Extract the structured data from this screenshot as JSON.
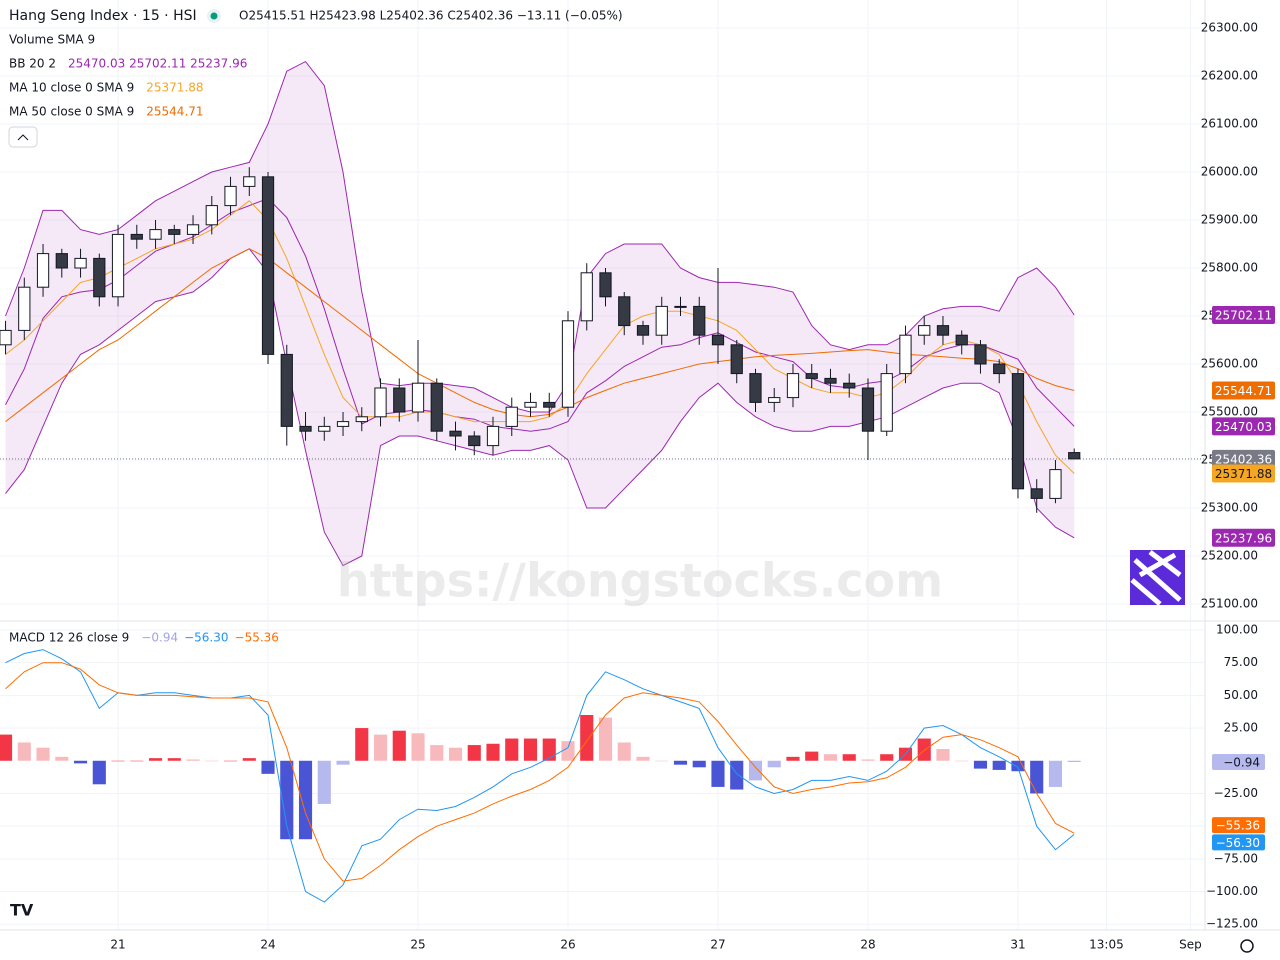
{
  "chart_data": {
    "type": "candlestick",
    "title": "Hang Seng Index · 15 · HSI",
    "ohlc_text": "O25415.51 H25423.98 L25402.36 C25402.36 −13.11 (−0.05%)",
    "watermark": "https://kongstocks.com",
    "xlim": [
      -0.787,
      7.247
    ],
    "xticks": [
      {
        "value": 0,
        "label": "21"
      },
      {
        "value": 1,
        "label": "24"
      },
      {
        "value": 2,
        "label": "25"
      },
      {
        "value": 3,
        "label": "26"
      },
      {
        "value": 4,
        "label": "27"
      },
      {
        "value": 5,
        "label": "28"
      },
      {
        "value": 6,
        "label": "31"
      },
      {
        "value": 6.59,
        "label": "13:05"
      },
      {
        "value": 7.15,
        "label": "Sep"
      }
    ],
    "grid": true,
    "x": [
      -0.75,
      -0.625,
      -0.5,
      -0.375,
      -0.25,
      -0.125,
      0,
      0.125,
      0.25,
      0.375,
      0.5,
      0.625,
      0.75,
      0.875,
      1,
      1.125,
      1.25,
      1.375,
      1.5,
      1.625,
      1.75,
      1.875,
      2,
      2.125,
      2.25,
      2.375,
      2.5,
      2.625,
      2.75,
      2.875,
      3,
      3.125,
      3.25,
      3.375,
      3.5,
      3.625,
      3.75,
      3.875,
      4,
      4.125,
      4.25,
      4.375,
      4.5,
      4.625,
      4.75,
      4.875,
      5,
      5.125,
      5.25,
      5.375,
      5.5,
      5.625,
      5.75,
      5.875,
      6,
      6.125,
      6.25,
      6.375
    ],
    "price": {
      "volume_legend": "Volume SMA 9",
      "ylim": [
        25066.67,
        26358.33
      ],
      "yticks": [
        {
          "value": 25100,
          "label": "25100.00"
        },
        {
          "value": 25200,
          "label": "25200.00"
        },
        {
          "value": 25300,
          "label": "25300.00"
        },
        {
          "value": 25400,
          "label": "25400.00"
        },
        {
          "value": 25500,
          "label": "25500.00"
        },
        {
          "value": 25600,
          "label": "25600.00"
        },
        {
          "value": 25700,
          "label": "25700.00"
        },
        {
          "value": 25800,
          "label": "25800.00"
        },
        {
          "value": 25900,
          "label": "25900.00"
        },
        {
          "value": 26000,
          "label": "26000.00"
        },
        {
          "value": 26100,
          "label": "26100.00"
        },
        {
          "value": 26200,
          "label": "26200.00"
        },
        {
          "value": 26300,
          "label": "26300.00"
        }
      ],
      "up_color": "#ffffff",
      "down_color": "#363a45",
      "border_color": "#131722",
      "open": [
        25640,
        25670,
        25760,
        25830,
        25800,
        25820,
        25740,
        25870,
        25860,
        25880,
        25870,
        25890,
        25930,
        25970,
        25990,
        25620,
        25470,
        25460,
        25470,
        25480,
        25490,
        25550,
        25500,
        25560,
        25460,
        25450,
        25430,
        25470,
        25510,
        25520,
        25510,
        25690,
        25790,
        25740,
        25680,
        25660,
        25720,
        25720,
        25660,
        25640,
        25580,
        25520,
        25530,
        25580,
        25570,
        25560,
        25550,
        25460,
        25580,
        25660,
        25680,
        25660,
        25640,
        25600,
        25580,
        25340,
        25320,
        25415.51
      ],
      "high": [
        25690,
        25780,
        25850,
        25840,
        25840,
        25830,
        25890,
        25890,
        25900,
        25890,
        25910,
        25950,
        25990,
        26010,
        26000,
        25640,
        25500,
        25490,
        25500,
        25510,
        25570,
        25570,
        25650,
        25570,
        25480,
        25460,
        25490,
        25530,
        25540,
        25540,
        25710,
        25810,
        25800,
        25750,
        25690,
        25740,
        25740,
        25740,
        25800,
        25650,
        25590,
        25550,
        25600,
        25600,
        25590,
        25580,
        25570,
        25600,
        25680,
        25700,
        25700,
        25670,
        25650,
        25610,
        25590,
        25360,
        25400,
        25423.98
      ],
      "low": [
        25620,
        25650,
        25740,
        25780,
        25780,
        25720,
        25720,
        25840,
        25840,
        25850,
        25850,
        25870,
        25910,
        25950,
        25600,
        25430,
        25440,
        25440,
        25450,
        25460,
        25470,
        25480,
        25480,
        25440,
        25420,
        25410,
        25410,
        25450,
        25490,
        25490,
        25490,
        25670,
        25720,
        25660,
        25640,
        25640,
        25700,
        25640,
        25600,
        25560,
        25500,
        25500,
        25510,
        25550,
        25540,
        25530,
        25400,
        25450,
        25560,
        25640,
        25640,
        25620,
        25580,
        25560,
        25320,
        25290,
        25310,
        25402.36
      ],
      "close": [
        25670,
        25760,
        25830,
        25800,
        25820,
        25740,
        25870,
        25860,
        25880,
        25870,
        25890,
        25930,
        25970,
        25990,
        25620,
        25470,
        25460,
        25470,
        25480,
        25490,
        25550,
        25500,
        25560,
        25460,
        25450,
        25430,
        25470,
        25510,
        25520,
        25510,
        25690,
        25790,
        25740,
        25680,
        25660,
        25720,
        25720,
        25660,
        25640,
        25580,
        25520,
        25530,
        25580,
        25570,
        25560,
        25550,
        25460,
        25580,
        25660,
        25680,
        25660,
        25640,
        25600,
        25580,
        25340,
        25320,
        25380,
        25402.36
      ],
      "overlays": [
        {
          "name": "BB 20 2",
          "legend_values": "25470.03  25702.11  25237.96",
          "color": "#9c27b0",
          "fill": "rgba(156,39,176,0.1)",
          "basis": [
            25515,
            25590,
            25695,
            25740,
            25750,
            25755,
            25775,
            25805,
            25835,
            25850,
            25865,
            25890,
            25915,
            25930,
            25945,
            25905,
            25825,
            25715,
            25590,
            25475,
            25495,
            25500,
            25505,
            25500,
            25490,
            25485,
            25470,
            25465,
            25460,
            25465,
            25480,
            25540,
            25565,
            25595,
            25615,
            25635,
            25640,
            25655,
            25665,
            25645,
            25625,
            25615,
            25605,
            25570,
            25555,
            25550,
            25560,
            25565,
            25585,
            25615,
            25630,
            25640,
            25640,
            25625,
            25610,
            25550,
            25510,
            25470.03
          ],
          "upper": [
            25700,
            25800,
            25920,
            25920,
            25880,
            25870,
            25880,
            25910,
            25940,
            25960,
            25980,
            26000,
            26010,
            26020,
            26100,
            26210,
            26230,
            26180,
            26000,
            25750,
            25560,
            25555,
            25560,
            25560,
            25555,
            25550,
            25530,
            25510,
            25500,
            25500,
            25560,
            25780,
            25830,
            25850,
            25850,
            25850,
            25800,
            25780,
            25770,
            25770,
            25765,
            25760,
            25750,
            25680,
            25640,
            25630,
            25640,
            25640,
            25660,
            25700,
            25715,
            25720,
            25720,
            25710,
            25780,
            25800,
            25760,
            25702.11
          ],
          "lower": [
            25330,
            25380,
            25470,
            25560,
            25620,
            25640,
            25670,
            25700,
            25730,
            25740,
            25750,
            25780,
            25820,
            25840,
            25790,
            25600,
            25420,
            25250,
            25180,
            25200,
            25430,
            25450,
            25450,
            25440,
            25430,
            25420,
            25410,
            25420,
            25420,
            25430,
            25400,
            25300,
            25300,
            25340,
            25380,
            25420,
            25480,
            25530,
            25560,
            25520,
            25490,
            25470,
            25460,
            25460,
            25470,
            25470,
            25480,
            25490,
            25510,
            25530,
            25550,
            25560,
            25560,
            25540,
            25440,
            25300,
            25260,
            25237.96
          ]
        },
        {
          "name": "MA 10 close 0 SMA 9",
          "legend_values": "25371.88",
          "color": "#f5a623",
          "values": [
            25620,
            25650,
            25690,
            25730,
            25770,
            25780,
            25800,
            25820,
            25840,
            25850,
            25860,
            25880,
            25910,
            25940,
            25900,
            25820,
            25720,
            25620,
            25530,
            25490,
            25490,
            25490,
            25500,
            25500,
            25490,
            25480,
            25480,
            25480,
            25480,
            25490,
            25520,
            25580,
            25630,
            25680,
            25700,
            25710,
            25710,
            25700,
            25690,
            25670,
            25630,
            25590,
            25570,
            25550,
            25540,
            25540,
            25530,
            25540,
            25570,
            25610,
            25640,
            25650,
            25640,
            25620,
            25560,
            25480,
            25410,
            25371.88
          ]
        },
        {
          "name": "MA 50 close 0 SMA 9",
          "legend_values": "25544.71",
          "color": "#ef6c00",
          "values": [
            25480,
            25510,
            25540,
            25570,
            25600,
            25630,
            25650,
            25680,
            25710,
            25740,
            25770,
            25800,
            25820,
            25840,
            25820,
            25790,
            25760,
            25730,
            25700,
            25670,
            25640,
            25610,
            25580,
            25560,
            25540,
            25520,
            25505,
            25495,
            25490,
            25495,
            25510,
            25530,
            25545,
            25560,
            25570,
            25580,
            25590,
            25600,
            25605,
            25610,
            25615,
            25618,
            25620,
            25622,
            25625,
            25628,
            25630,
            25625,
            25620,
            25618,
            25615,
            25612,
            25610,
            25605,
            25590,
            25570,
            25555,
            25544.71
          ]
        }
      ],
      "tags": [
        {
          "value": 25702.11,
          "color": "#9c27b0",
          "text_color": "#ffffff"
        },
        {
          "value": 25544.71,
          "color": "#ef6c00",
          "text_color": "#ffffff"
        },
        {
          "value": 25470.03,
          "color": "#9c27b0",
          "text_color": "#ffffff"
        },
        {
          "value": 25402.36,
          "color": "#787b86",
          "text_color": "#ffffff"
        },
        {
          "value": 25371.88,
          "color": "#f5a623",
          "text_color": "#131722"
        },
        {
          "value": 25237.96,
          "color": "#9c27b0",
          "text_color": "#ffffff"
        }
      ],
      "last_line": 25402.36
    },
    "macd": {
      "name": "MACD 12 26 close 9",
      "legend_values": [
        "−0.94",
        "−56.30",
        "−55.36"
      ],
      "legend_colors": [
        "#9fa4e6",
        "#2196f3",
        "#ff6d00"
      ],
      "ylim": [
        -129.4,
        106.1
      ],
      "yticks": [
        {
          "value": 100,
          "label": "100.00"
        },
        {
          "value": 75,
          "label": "75.00"
        },
        {
          "value": 50,
          "label": "50.00"
        },
        {
          "value": 25,
          "label": "25.00"
        },
        {
          "value": -25,
          "label": "−25.00"
        },
        {
          "value": -50,
          "label": "−50.00"
        },
        {
          "value": -75,
          "label": "−75.00"
        },
        {
          "value": -100,
          "label": "−100.00"
        },
        {
          "value": -125,
          "label": "−125.00"
        }
      ],
      "histogram": {
        "colors": [
          "#f23645",
          "#f8b9bd",
          "#4a55d6",
          "#b5b9ee"
        ],
        "values": [
          20,
          14,
          10,
          3,
          -2,
          -18,
          0,
          0,
          2,
          2,
          1,
          0,
          0,
          2,
          -10,
          -60,
          -60,
          -33,
          -3,
          25,
          20,
          23,
          21,
          12,
          10,
          12,
          13,
          17,
          17,
          17,
          15,
          35,
          33,
          14,
          3,
          0,
          -3,
          -5,
          -20,
          -22,
          -15,
          -5,
          3,
          7,
          5,
          5,
          1,
          5,
          10,
          17,
          9,
          0,
          -6,
          -7,
          -8,
          -25,
          -20,
          -0.94
        ]
      },
      "macd_line": {
        "color": "#2196f3",
        "values": [
          75,
          82,
          85,
          78,
          68,
          40,
          52,
          50,
          52,
          52,
          50,
          48,
          48,
          50,
          35,
          -50,
          -100,
          -108,
          -95,
          -65,
          -60,
          -45,
          -37,
          -38,
          -35,
          -28,
          -20,
          -10,
          -5,
          2,
          10,
          50,
          68,
          62,
          55,
          50,
          45,
          40,
          10,
          -10,
          -20,
          -25,
          -22,
          -15,
          -15,
          -12,
          -15,
          -8,
          5,
          25,
          27,
          20,
          10,
          3,
          -5,
          -50,
          -68,
          -56.3
        ]
      },
      "signal_line": {
        "color": "#ff6d00",
        "values": [
          55,
          68,
          75,
          75,
          70,
          58,
          52,
          50,
          50,
          50,
          49,
          48,
          48,
          48,
          45,
          10,
          -40,
          -75,
          -92,
          -90,
          -80,
          -68,
          -58,
          -50,
          -45,
          -40,
          -33,
          -27,
          -22,
          -15,
          -5,
          15,
          35,
          48,
          52,
          50,
          48,
          45,
          30,
          12,
          -5,
          -20,
          -25,
          -22,
          -20,
          -17,
          -16,
          -13,
          -5,
          8,
          18,
          20,
          16,
          10,
          3,
          -25,
          -48,
          -55.36
        ]
      },
      "tags": [
        {
          "value": -0.94,
          "label": "−0.94",
          "color": "#b5b9ee",
          "text_color": "#131722"
        },
        {
          "value": -55.36,
          "label": "−55.36",
          "color": "#ff6d00",
          "text_color": "#ffffff"
        },
        {
          "value": -56.3,
          "label": "−56.30",
          "color": "#2196f3",
          "text_color": "#ffffff"
        }
      ]
    }
  }
}
